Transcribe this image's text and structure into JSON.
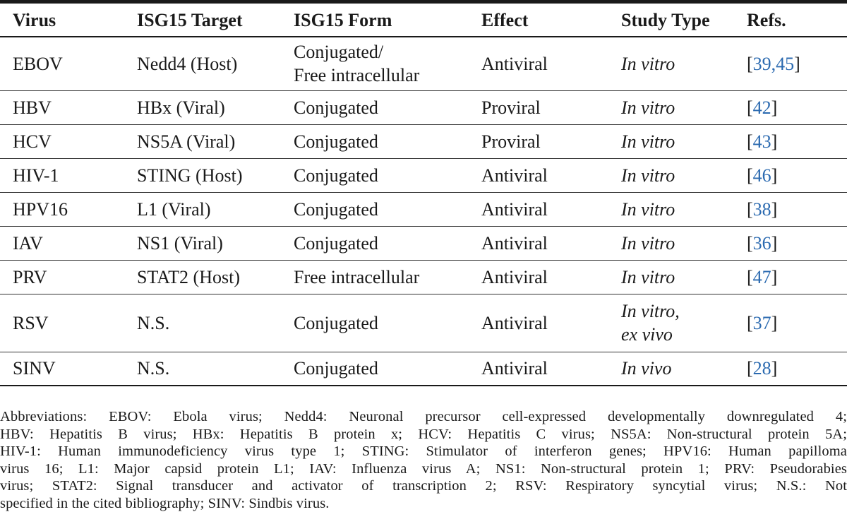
{
  "table": {
    "headers": [
      "Virus",
      "ISG15 Target",
      "ISG15 Form",
      "Effect",
      "Study Type",
      "Refs."
    ],
    "rows": [
      {
        "virus": "EBOV",
        "target": "Nedd4 (Host)",
        "form": [
          "Conjugated/",
          "Free intracellular"
        ],
        "effect": "Antiviral",
        "study": [
          "In vitro"
        ],
        "refs": "39,45",
        "height": 76
      },
      {
        "virus": "HBV",
        "target": "HBx (Viral)",
        "form": [
          "Conjugated"
        ],
        "effect": "Proviral",
        "study": [
          "In vitro"
        ],
        "refs": "42",
        "height": 48
      },
      {
        "virus": "HCV",
        "target": "NS5A (Viral)",
        "form": [
          "Conjugated"
        ],
        "effect": "Proviral",
        "study": [
          "In vitro"
        ],
        "refs": "43",
        "height": 48
      },
      {
        "virus": "HIV-1",
        "target": "STING (Host)",
        "form": [
          "Conjugated"
        ],
        "effect": "Antiviral",
        "study": [
          "In vitro"
        ],
        "refs": "46",
        "height": 48
      },
      {
        "virus": "HPV16",
        "target": "L1 (Viral)",
        "form": [
          "Conjugated"
        ],
        "effect": "Antiviral",
        "study": [
          "In vitro"
        ],
        "refs": "38",
        "height": 48
      },
      {
        "virus": "IAV",
        "target": "NS1 (Viral)",
        "form": [
          "Conjugated"
        ],
        "effect": "Antiviral",
        "study": [
          "In vitro"
        ],
        "refs": "36",
        "height": 48
      },
      {
        "virus": "PRV",
        "target": "STAT2 (Host)",
        "form": [
          "Free intracellular"
        ],
        "effect": "Antiviral",
        "study": [
          "In vitro"
        ],
        "refs": "47",
        "height": 48
      },
      {
        "virus": "RSV",
        "target": "N.S.",
        "form": [
          "Conjugated"
        ],
        "effect": "Antiviral",
        "study": [
          "In vitro,",
          "ex vivo"
        ],
        "refs": "37",
        "height": 82
      },
      {
        "virus": "SINV",
        "target": "N.S.",
        "form": [
          "Conjugated"
        ],
        "effect": "Antiviral",
        "study": [
          "In vivo"
        ],
        "refs": "28",
        "height": 48
      }
    ]
  },
  "footnote": {
    "lines": [
      "Abbreviations: EBOV: Ebola virus; Nedd4: Neuronal precursor cell-expressed developmentally downregulated 4;",
      "HBV: Hepatitis B virus; HBx: Hepatitis B protein x; HCV: Hepatitis C virus; NS5A: Non-structural protein 5A;",
      "HIV-1: Human immunodeficiency virus type 1; STING: Stimulator of interferon genes; HPV16: Human papilloma",
      "virus 16; L1: Major capsid protein L1; IAV: Influenza virus A; NS1: Non-structural protein 1; PRV: Pseudorabies",
      "virus; STAT2: Signal transducer and activator of transcription 2; RSV: Respiratory syncytial virus; N.S.: Not",
      "specified in the cited bibliography; SINV: Sindbis virus."
    ]
  }
}
